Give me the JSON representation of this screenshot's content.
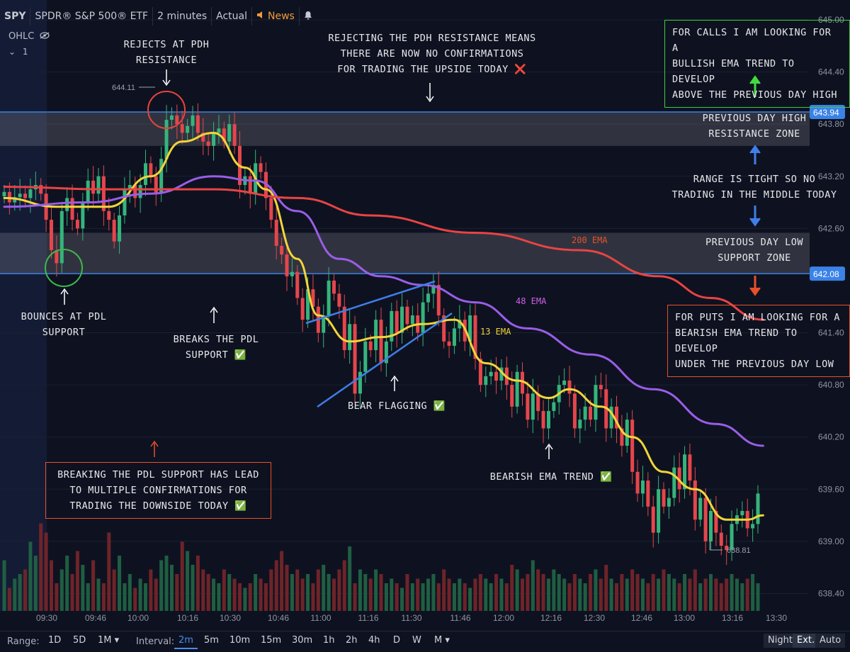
{
  "header": {
    "symbol": "SPY",
    "name": "SPDR® S&P 500® ETF",
    "interval": "2 minutes",
    "mode": "Actual",
    "news": "News",
    "ohlc": "OHLC",
    "pane": "1"
  },
  "colors": {
    "up": "#35b47c",
    "down": "#e4464c",
    "ema13": "#f3d43a",
    "ema48": "#9a5de8",
    "ema200": "#e84444",
    "level": "#3a82e6"
  },
  "chart_data": {
    "type": "candlestick",
    "ylim": [
      638.2,
      645.0
    ],
    "x_ticks": [
      "09:30",
      "09:46",
      "10:00",
      "10:16",
      "10:30",
      "10:46",
      "11:00",
      "11:16",
      "11:30",
      "11:46",
      "12:00",
      "12:16",
      "12:30",
      "12:46",
      "13:00",
      "13:16",
      "13:30"
    ],
    "y_ticks": [
      "645.00",
      "644.40",
      "643.80",
      "643.20",
      "642.60",
      "641.40",
      "640.80",
      "640.20",
      "639.60",
      "639.00",
      "638.40"
    ],
    "price_labels": {
      "pdh": "643.94",
      "pdl": "642.08",
      "high": "644.11",
      "low": "638.81"
    },
    "levels": {
      "pdh": 643.94,
      "pdh_zone_bottom": 643.55,
      "pdl": 642.08,
      "pdl_zone_top": 642.55
    },
    "candles_close_path": [
      643.02,
      642.9,
      642.96,
      643.0,
      642.95,
      643.05,
      643.1,
      643.0,
      642.7,
      642.35,
      642.2,
      642.8,
      642.95,
      642.7,
      642.6,
      642.9,
      643.15,
      643.0,
      643.2,
      642.8,
      642.7,
      642.45,
      642.75,
      643.05,
      643.1,
      642.95,
      643.1,
      643.35,
      643.2,
      643.0,
      643.4,
      643.85,
      643.9,
      643.8,
      643.7,
      643.78,
      643.9,
      643.7,
      643.6,
      643.55,
      643.7,
      643.75,
      643.6,
      643.8,
      643.55,
      643.1,
      643.2,
      643.0,
      643.35,
      643.25,
      642.95,
      642.7,
      642.4,
      642.3,
      642.05,
      642.1,
      641.8,
      641.55,
      641.9,
      641.7,
      641.4,
      641.6,
      642.0,
      641.85,
      641.7,
      641.2,
      641.5,
      640.7,
      640.95,
      641.3,
      641.2,
      641.55,
      641.05,
      641.3,
      641.65,
      641.4,
      641.7,
      641.5,
      641.6,
      641.4,
      641.75,
      641.85,
      641.95,
      641.6,
      641.3,
      641.25,
      641.45,
      641.55,
      641.3,
      641.6,
      641.1,
      640.8,
      640.9,
      640.95,
      640.85,
      641.0,
      640.8,
      640.55,
      640.95,
      640.7,
      640.4,
      640.7,
      640.5,
      640.3,
      640.5,
      640.6,
      640.8,
      640.85,
      640.7,
      640.3,
      640.4,
      640.55,
      640.4,
      640.8,
      640.75,
      640.3,
      640.55,
      640.3,
      640.1,
      640.4,
      639.8,
      639.55,
      639.7,
      639.4,
      639.1,
      639.6,
      639.4,
      639.5,
      639.85,
      639.6,
      640.0,
      639.7,
      639.25,
      639.5,
      639.0,
      639.35,
      639.1,
      638.95,
      638.9,
      639.2,
      639.3,
      639.35,
      639.15,
      639.2,
      639.55
    ],
    "series": [
      {
        "name": "13 EMA",
        "anchors": [
          [
            0,
            642.95
          ],
          [
            10,
            642.85
          ],
          [
            20,
            642.85
          ],
          [
            28,
            643.2
          ],
          [
            34,
            643.6
          ],
          [
            40,
            643.7
          ],
          [
            46,
            643.3
          ],
          [
            50,
            643.05
          ],
          [
            56,
            642.25
          ],
          [
            60,
            641.6
          ],
          [
            66,
            641.3
          ],
          [
            72,
            641.35
          ],
          [
            80,
            641.5
          ],
          [
            86,
            641.55
          ],
          [
            92,
            641.05
          ],
          [
            98,
            640.85
          ],
          [
            104,
            640.65
          ],
          [
            108,
            640.75
          ],
          [
            114,
            640.55
          ],
          [
            120,
            640.2
          ],
          [
            126,
            639.8
          ],
          [
            132,
            639.6
          ],
          [
            138,
            639.25
          ],
          [
            142,
            639.25
          ],
          [
            145,
            639.3
          ]
        ]
      },
      {
        "name": "48 EMA",
        "anchors": [
          [
            0,
            642.85
          ],
          [
            16,
            642.9
          ],
          [
            28,
            643.0
          ],
          [
            40,
            643.2
          ],
          [
            48,
            643.15
          ],
          [
            56,
            642.8
          ],
          [
            64,
            642.25
          ],
          [
            72,
            642.05
          ],
          [
            80,
            641.95
          ],
          [
            90,
            641.75
          ],
          [
            100,
            641.45
          ],
          [
            112,
            641.15
          ],
          [
            124,
            640.75
          ],
          [
            136,
            640.35
          ],
          [
            145,
            640.1
          ]
        ]
      },
      {
        "name": "200 EMA",
        "anchors": [
          [
            0,
            643.08
          ],
          [
            20,
            643.05
          ],
          [
            40,
            643.05
          ],
          [
            56,
            642.95
          ],
          [
            70,
            642.75
          ],
          [
            90,
            642.55
          ],
          [
            110,
            642.35
          ],
          [
            125,
            642.05
          ],
          [
            135,
            641.8
          ],
          [
            145,
            641.55
          ]
        ]
      }
    ],
    "volume": [
      0.55,
      0.25,
      0.35,
      0.4,
      0.45,
      0.75,
      0.6,
      0.95,
      0.85,
      0.55,
      0.3,
      0.45,
      0.6,
      0.4,
      0.65,
      0.5,
      0.3,
      0.55,
      0.35,
      0.3,
      0.85,
      0.45,
      0.6,
      0.3,
      0.4,
      0.25,
      0.35,
      0.3,
      0.45,
      0.35,
      0.55,
      0.6,
      0.5,
      0.4,
      0.75,
      0.65,
      0.5,
      0.6,
      0.45,
      0.4,
      0.35,
      0.3,
      0.45,
      0.4,
      0.35,
      0.3,
      0.25,
      0.3,
      0.4,
      0.35,
      0.3,
      0.45,
      0.55,
      0.65,
      0.5,
      0.4,
      0.45,
      0.35,
      0.4,
      0.3,
      0.45,
      0.5,
      0.4,
      0.35,
      0.45,
      0.55,
      0.7,
      0.3,
      0.45,
      0.4,
      0.35,
      0.45,
      0.4,
      0.3,
      0.35,
      0.3,
      0.25,
      0.4,
      0.3,
      0.35,
      0.3,
      0.35,
      0.4,
      0.3,
      0.45,
      0.35,
      0.3,
      0.35,
      0.3,
      0.25,
      0.35,
      0.4,
      0.35,
      0.3,
      0.4,
      0.35,
      0.3,
      0.5,
      0.45,
      0.35,
      0.4,
      0.55,
      0.45,
      0.4,
      0.35,
      0.45,
      0.4,
      0.35,
      0.3,
      0.4,
      0.35,
      0.3,
      0.4,
      0.45,
      0.35,
      0.5,
      0.35,
      0.3,
      0.4,
      0.35,
      0.45,
      0.4,
      0.35,
      0.3,
      0.4,
      0.35,
      0.45,
      0.4,
      0.35,
      0.3,
      0.4,
      0.35,
      0.45,
      0.3,
      0.35,
      0.4,
      0.35,
      0.3,
      0.35,
      0.4,
      0.35,
      0.3,
      0.35,
      0.4,
      0.3
    ]
  },
  "annotations": {
    "ema200": "200 EMA",
    "ema48": "48 EMA",
    "ema13": "13 EMA",
    "rejects": "REJECTS AT PDH\nRESISTANCE",
    "rejecting_pdh": "REJECTING THE PDH RESISTANCE MEANS\nTHERE ARE NOW NO CONFIRMATIONS\nFOR TRADING THE UPSIDE TODAY ❌",
    "calls": "FOR CALLS I AM LOOKING FOR A\nBULLISH EMA TREND TO DEVELOP\nABOVE THE PREVIOUS DAY HIGH",
    "pdh_zone": "PREVIOUS DAY HIGH\nRESISTANCE ZONE",
    "range": "RANGE IS TIGHT SO NO\nTRADING IN THE MIDDLE TODAY",
    "pdl_zone": "PREVIOUS DAY LOW\nSUPPORT ZONE",
    "puts": "FOR PUTS I AM LOOKING FOR A\nBEARISH EMA TREND TO DEVELOP\nUNDER THE PREVIOUS DAY LOW",
    "bounces": "BOUNCES AT PDL\nSUPPORT",
    "breaks": "BREAKS THE PDL\nSUPPORT ✅",
    "bear_flag": "BEAR FLAGGING ✅",
    "bearish_trend": "BEARISH EMA TREND ✅",
    "breaking_pdl": "BREAKING THE PDL SUPPORT HAS LEAD\nTO MULTIPLE CONFIRMATIONS FOR\nTRADING THE DOWNSIDE TODAY ✅"
  },
  "footer": {
    "range_label": "Range:",
    "ranges": [
      "1D",
      "5D",
      "1M ▾"
    ],
    "interval_label": "Interval:",
    "intervals": [
      "2m",
      "5m",
      "10m",
      "15m",
      "30m",
      "1h",
      "2h",
      "4h",
      "D",
      "W",
      "M ▾"
    ],
    "right": [
      "Night",
      "Ext.",
      "Auto"
    ]
  }
}
